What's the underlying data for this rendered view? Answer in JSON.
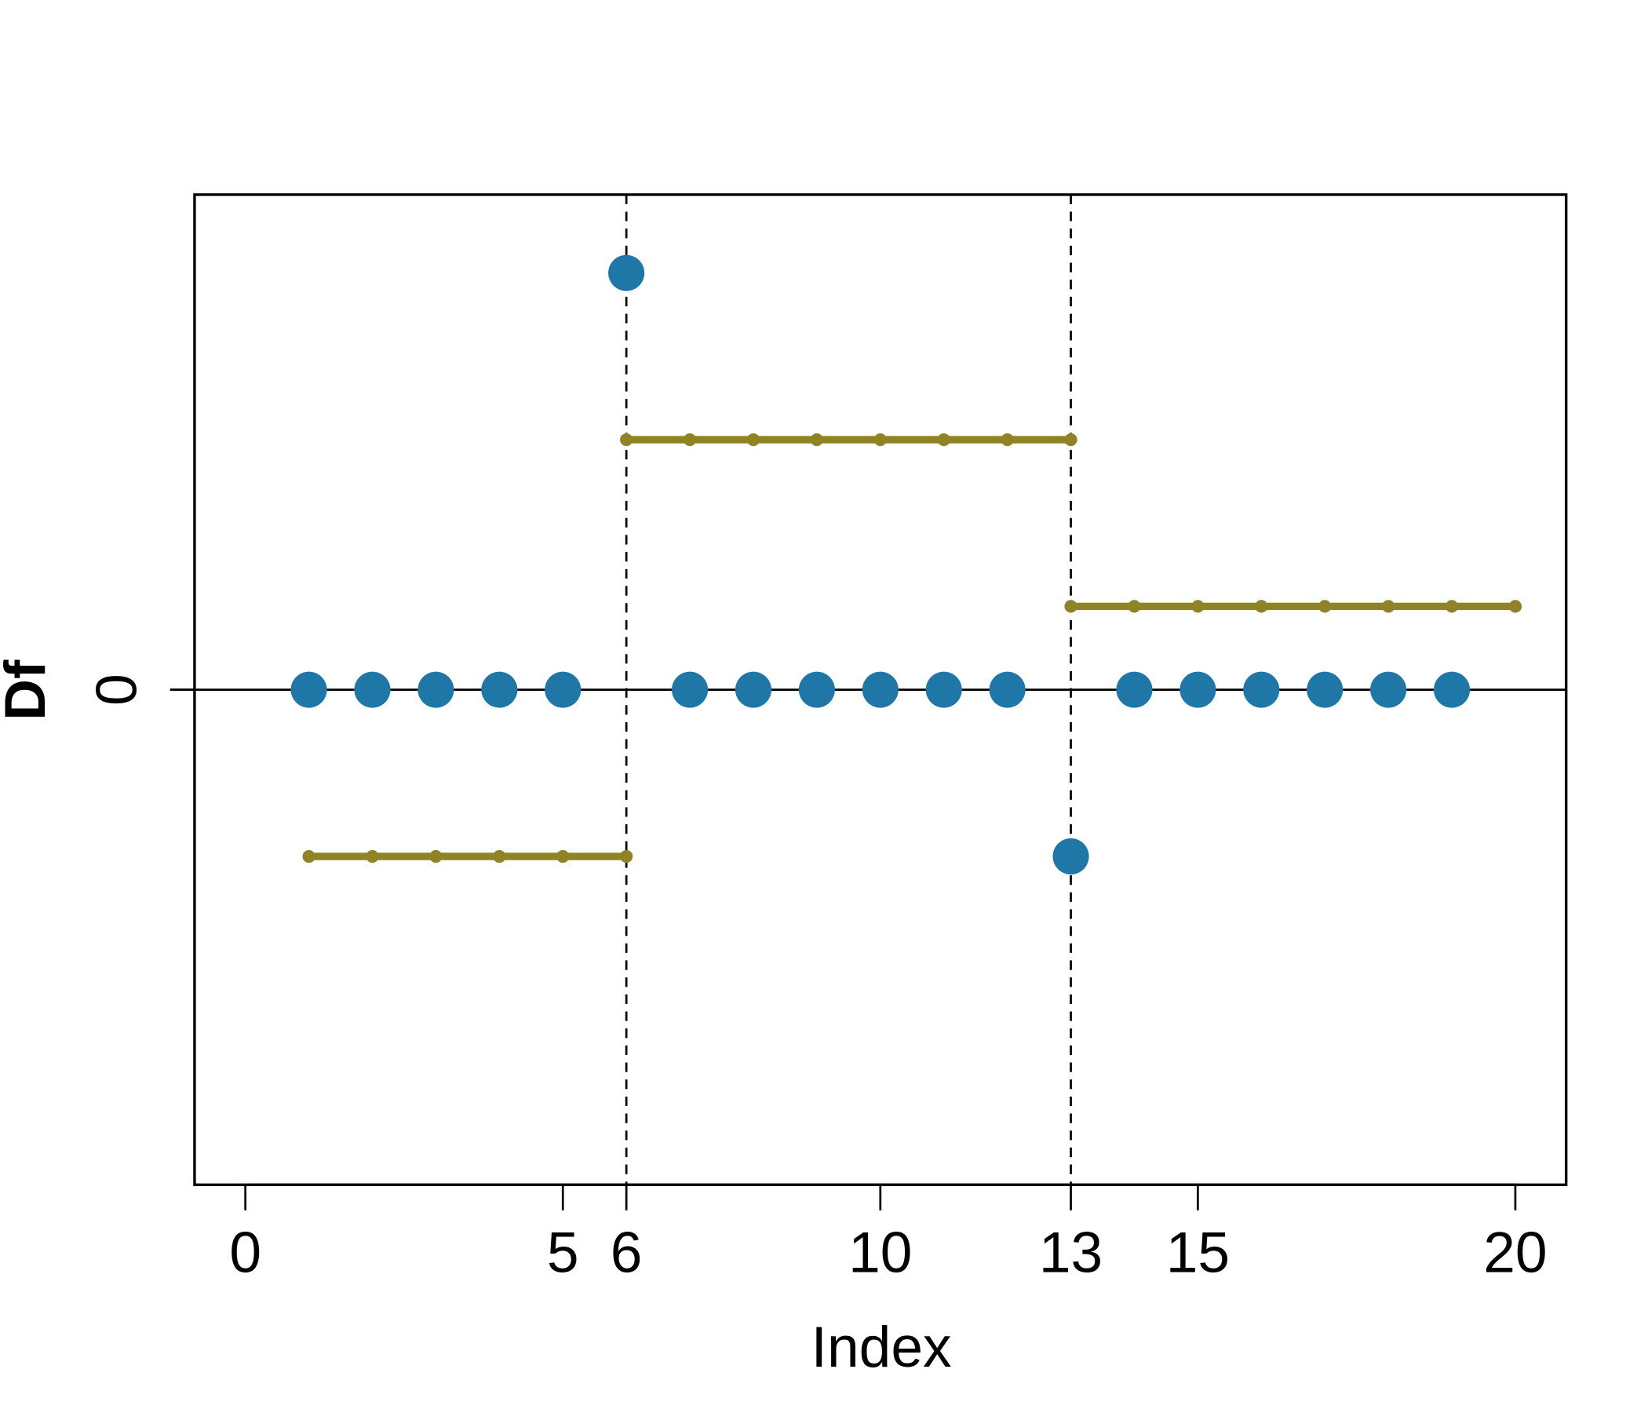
{
  "chart_data": {
    "type": "scatter",
    "x_label": "Index",
    "y_label": "Df",
    "xlim": [
      -0.8,
      20.8
    ],
    "ylim": [
      -5.94,
      5.94
    ],
    "xticks": [
      0,
      5,
      6,
      10,
      13,
      15,
      20
    ],
    "yticks": [
      0
    ],
    "hline": 0,
    "vlines": [
      6,
      13
    ],
    "highlight_color": "#ff0000",
    "series": [
      {
        "style": "points",
        "color": "#1f77a8",
        "x": [
          1,
          2,
          3,
          4,
          5,
          6,
          7,
          8,
          9,
          10,
          11,
          12,
          13,
          14,
          15,
          16,
          17,
          18,
          19
        ],
        "values": [
          0,
          0,
          0,
          0,
          0,
          5,
          0,
          0,
          0,
          0,
          0,
          0,
          -2,
          0,
          0,
          0,
          0,
          0,
          0
        ]
      },
      {
        "style": "line",
        "color": "#8f8326",
        "x": [
          1,
          2,
          3,
          4,
          5,
          6
        ],
        "values": [
          -2,
          -2,
          -2,
          -2,
          -2,
          -2
        ]
      },
      {
        "style": "line",
        "color": "#8f8326",
        "x": [
          6,
          7,
          8,
          9,
          10,
          11,
          12,
          13
        ],
        "values": [
          3,
          3,
          3,
          3,
          3,
          3,
          3,
          3
        ]
      },
      {
        "style": "line",
        "color": "#8f8326",
        "x": [
          13,
          14,
          15,
          16,
          17,
          18,
          19,
          20
        ],
        "values": [
          1,
          1,
          1,
          1,
          1,
          1,
          1,
          1
        ]
      }
    ]
  }
}
